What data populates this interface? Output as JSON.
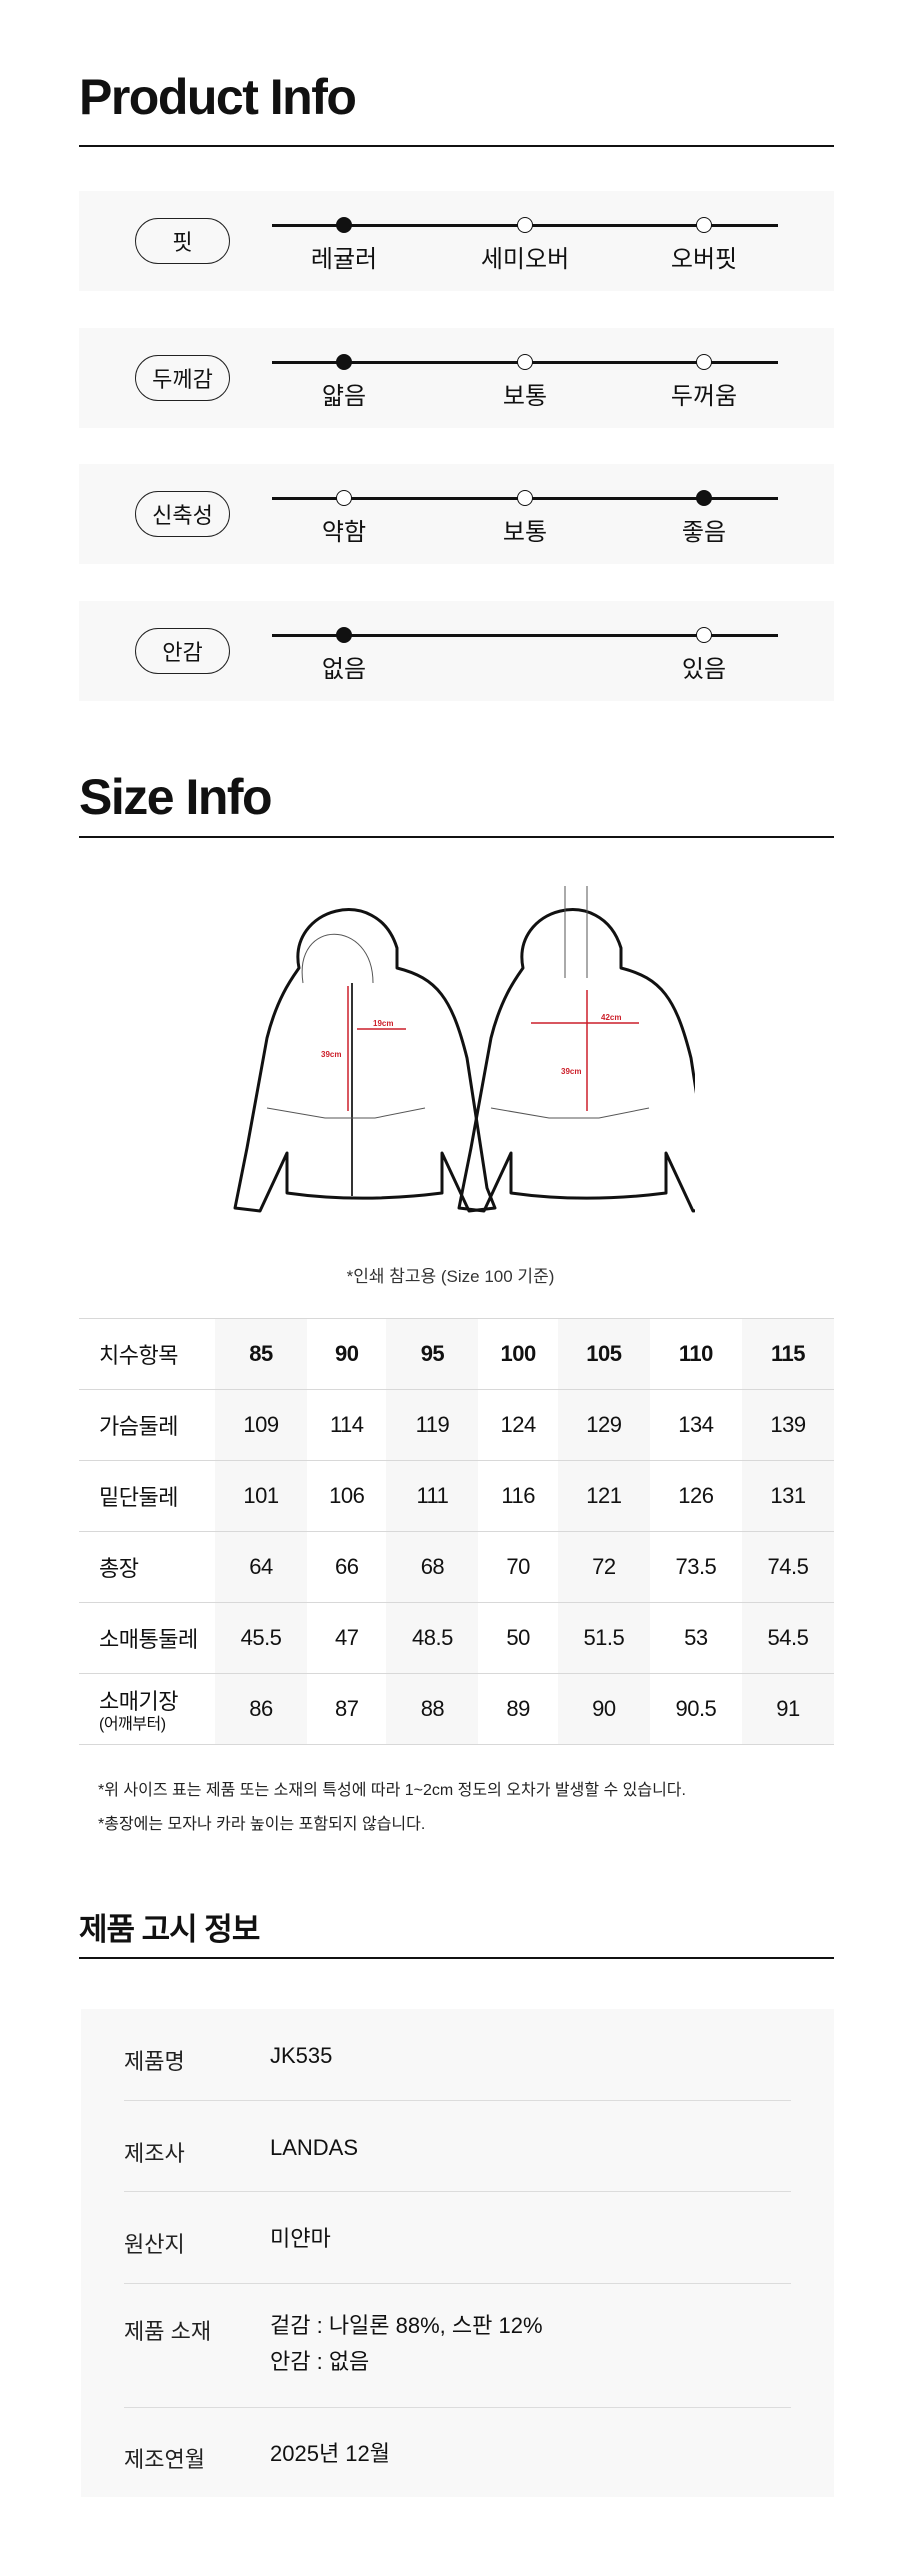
{
  "product_info": {
    "title": "Product Info",
    "attributes": [
      {
        "label": "핏",
        "options": [
          "레귤러",
          "세미오버",
          "오버핏"
        ],
        "selected": 0
      },
      {
        "label": "두께감",
        "options": [
          "얇음",
          "보통",
          "두꺼움"
        ],
        "selected": 0
      },
      {
        "label": "신축성",
        "options": [
          "약함",
          "보통",
          "좋음"
        ],
        "selected": 2
      },
      {
        "label": "안감",
        "options": [
          "없음",
          "있음"
        ],
        "selected": 0
      }
    ]
  },
  "size_info": {
    "title": "Size Info",
    "diagram": {
      "front_width": "19cm",
      "front_length": "39cm",
      "back_width": "42cm",
      "back_length": "39cm",
      "measure_color": "#cc1f2a"
    },
    "caption": "*인쇄 참고용 (Size 100 기준)",
    "table": {
      "header": [
        "치수항목",
        "85",
        "90",
        "95",
        "100",
        "105",
        "110",
        "115"
      ],
      "rows": [
        {
          "label": "가슴둘레",
          "values": [
            "109",
            "114",
            "119",
            "124",
            "129",
            "134",
            "139"
          ]
        },
        {
          "label": "밑단둘레",
          "values": [
            "101",
            "106",
            "111",
            "116",
            "121",
            "126",
            "131"
          ]
        },
        {
          "label": "총장",
          "values": [
            "64",
            "66",
            "68",
            "70",
            "72",
            "73.5",
            "74.5"
          ]
        },
        {
          "label": "소매통둘레",
          "values": [
            "45.5",
            "47",
            "48.5",
            "50",
            "51.5",
            "53",
            "54.5"
          ]
        },
        {
          "label": "소매기장",
          "sublabel": "(어깨부터)",
          "values": [
            "86",
            "87",
            "88",
            "89",
            "90",
            "90.5",
            "91"
          ]
        }
      ]
    },
    "notes": [
      "*위 사이즈 표는 제품 또는 소재의 특성에 따라 1~2cm 정도의 오차가 발생할 수 있습니다.",
      "*총장에는 모자나 카라 높이는 포함되지 않습니다."
    ]
  },
  "notice": {
    "title": "제품 고시 정보",
    "rows": [
      {
        "key": "제품명",
        "lines": [
          "JK535"
        ]
      },
      {
        "key": "제조사",
        "lines": [
          "LANDAS"
        ]
      },
      {
        "key": "원산지",
        "lines": [
          "미얀마"
        ]
      },
      {
        "key": "제품 소재",
        "lines": [
          "겉감 : 나일론 88%, 스판 12%",
          "안감 : 없음"
        ]
      },
      {
        "key": "제조연월",
        "lines": [
          "2025년 12월"
        ]
      }
    ]
  }
}
